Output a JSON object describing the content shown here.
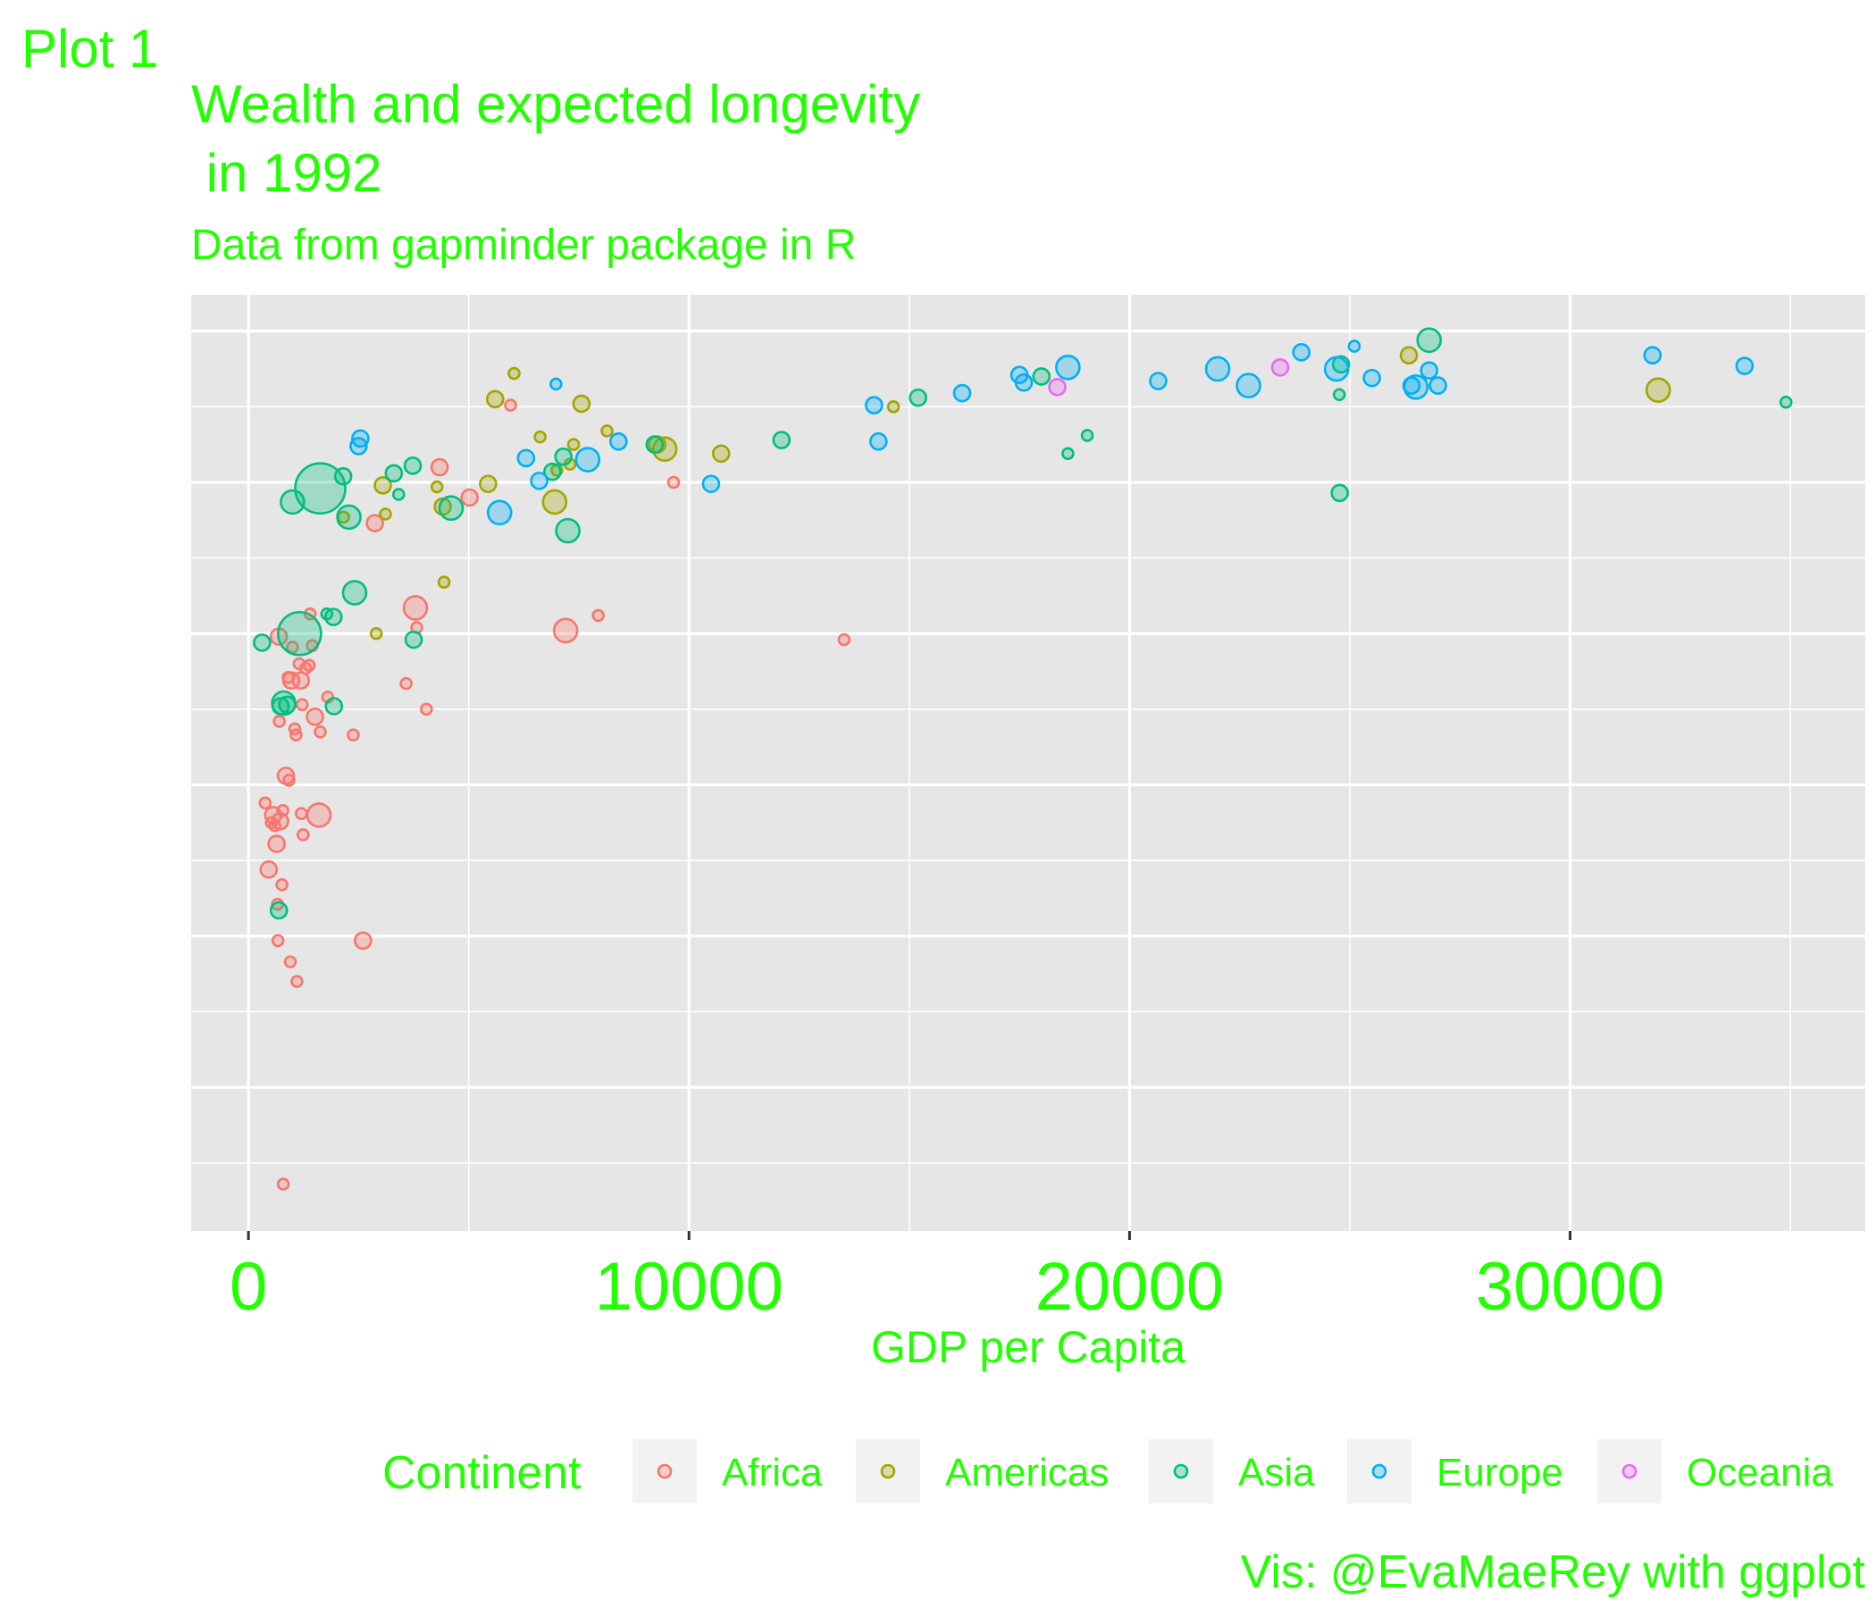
{
  "chart_data": {
    "type": "scatter",
    "tag": "Plot 1",
    "title_lines": [
      "Wealth and expected longevity",
      " in 1992"
    ],
    "subtitle": "Data from gapminder package in R",
    "xlabel": "GDP per Capita",
    "ylabel": "",
    "caption": "Vis: @EvaMaeRey with ggplot",
    "xlim": [
      -1300,
      36700
    ],
    "ylim": [
      20.5,
      82.4
    ],
    "x_ticks": [
      0,
      10000,
      20000,
      30000
    ],
    "x_tick_labels": [
      "0",
      "10000",
      "20000",
      "30000"
    ],
    "x_minor_ticks": [
      5000,
      15000,
      25000,
      35000
    ],
    "y_major_ticks": [
      30,
      40,
      50,
      60,
      70,
      80
    ],
    "y_minor_ticks": [
      25,
      35,
      45,
      55,
      65,
      75
    ],
    "y_tick_labels_shown": false,
    "grid": true,
    "legend": {
      "position": "bottom",
      "title": "Continent",
      "entries": [
        {
          "name": "Africa",
          "color": "#F8766D"
        },
        {
          "name": "Americas",
          "color": "#A3A500"
        },
        {
          "name": "Asia",
          "color": "#00BF7D"
        },
        {
          "name": "Europe",
          "color": "#00B0F6"
        },
        {
          "name": "Oceania",
          "color": "#E76BF3"
        }
      ]
    },
    "colors": {
      "text": "#22ff00",
      "panel": "#e6e6e6",
      "grid": "#ffffff"
    },
    "series": [
      {
        "name": "Africa",
        "color": "#F8766D",
        "points": [
          [
            380,
            48.8,
            1
          ],
          [
            460,
            44.4,
            2
          ],
          [
            520,
            47.5,
            1
          ],
          [
            560,
            48.0,
            2
          ],
          [
            600,
            47.3,
            1
          ],
          [
            640,
            46.1,
            2
          ],
          [
            660,
            42.1,
            1
          ],
          [
            670,
            39.7,
            1
          ],
          [
            690,
            59.8,
            2
          ],
          [
            700,
            54.2,
            1
          ],
          [
            720,
            47.6,
            2
          ],
          [
            760,
            43.4,
            1
          ],
          [
            780,
            48.3,
            1
          ],
          [
            790,
            23.6,
            1
          ],
          [
            850,
            50.6,
            2
          ],
          [
            900,
            57.1,
            1
          ],
          [
            920,
            50.3,
            1
          ],
          [
            950,
            38.3,
            1
          ],
          [
            970,
            56.9,
            2
          ],
          [
            1000,
            59.1,
            1
          ],
          [
            1050,
            53.7,
            1
          ],
          [
            1080,
            53.3,
            1
          ],
          [
            1100,
            37.0,
            1
          ],
          [
            1150,
            58.0,
            1
          ],
          [
            1190,
            56.9,
            2
          ],
          [
            1200,
            48.1,
            1
          ],
          [
            1220,
            55.3,
            1
          ],
          [
            1240,
            46.7,
            1
          ],
          [
            1300,
            57.7,
            1
          ],
          [
            1380,
            57.9,
            1
          ],
          [
            1400,
            61.3,
            1
          ],
          [
            1450,
            59.2,
            1
          ],
          [
            1510,
            54.5,
            2
          ],
          [
            1600,
            48.0,
            3
          ],
          [
            1630,
            53.5,
            1
          ],
          [
            1800,
            55.8,
            1
          ],
          [
            2380,
            53.3,
            1
          ],
          [
            2600,
            39.7,
            2
          ],
          [
            2870,
            67.3,
            2
          ],
          [
            3580,
            56.7,
            1
          ],
          [
            3790,
            61.7,
            3
          ],
          [
            3820,
            60.4,
            1
          ],
          [
            4040,
            55.0,
            1
          ],
          [
            4340,
            71.0,
            2
          ],
          [
            5020,
            69.0,
            2
          ],
          [
            5950,
            75.1,
            1
          ],
          [
            7200,
            60.2,
            3
          ],
          [
            7940,
            61.2,
            1
          ],
          [
            9650,
            70.0,
            1
          ],
          [
            13520,
            59.6,
            1
          ]
        ]
      },
      {
        "name": "Americas",
        "color": "#A3A500",
        "points": [
          [
            2160,
            67.7,
            1
          ],
          [
            2900,
            60.0,
            1
          ],
          [
            3050,
            69.8,
            2
          ],
          [
            3110,
            67.9,
            1
          ],
          [
            4280,
            69.7,
            1
          ],
          [
            4410,
            68.4,
            2
          ],
          [
            4440,
            63.4,
            1
          ],
          [
            5440,
            69.9,
            2
          ],
          [
            5600,
            75.5,
            2
          ],
          [
            6030,
            77.2,
            1
          ],
          [
            6620,
            73.0,
            1
          ],
          [
            6950,
            68.7,
            3
          ],
          [
            7000,
            70.8,
            1
          ],
          [
            7300,
            71.2,
            1
          ],
          [
            7380,
            72.5,
            1
          ],
          [
            7560,
            75.2,
            2
          ],
          [
            8140,
            73.4,
            1
          ],
          [
            9280,
            72.5,
            2
          ],
          [
            9450,
            72.2,
            3
          ],
          [
            10730,
            71.9,
            2
          ],
          [
            14640,
            75.0,
            1
          ],
          [
            26340,
            78.4,
            2
          ],
          [
            32000,
            76.1,
            3
          ]
        ]
      },
      {
        "name": "Asia",
        "color": "#00BF7D",
        "points": [
          [
            310,
            59.4,
            2
          ],
          [
            690,
            41.7,
            2
          ],
          [
            730,
            55.2,
            2
          ],
          [
            800,
            55.4,
            3
          ],
          [
            880,
            55.3,
            2
          ],
          [
            1000,
            68.7,
            3
          ],
          [
            1160,
            60.0,
            4
          ],
          [
            1630,
            69.6,
            4
          ],
          [
            1780,
            61.3,
            1
          ],
          [
            1930,
            61.1,
            2
          ],
          [
            1940,
            55.2,
            2
          ],
          [
            2150,
            70.4,
            2
          ],
          [
            2280,
            67.7,
            3
          ],
          [
            2410,
            62.7,
            3
          ],
          [
            3300,
            70.6,
            2
          ],
          [
            3410,
            69.2,
            1
          ],
          [
            3730,
            71.1,
            2
          ],
          [
            3750,
            59.6,
            2
          ],
          [
            4600,
            68.3,
            3
          ],
          [
            6900,
            70.7,
            2
          ],
          [
            7150,
            71.7,
            2
          ],
          [
            7250,
            66.8,
            3
          ],
          [
            9220,
            72.5,
            2
          ],
          [
            12100,
            72.8,
            2
          ],
          [
            15200,
            75.6,
            2
          ],
          [
            18000,
            77.0,
            2
          ],
          [
            18600,
            71.9,
            1
          ],
          [
            19040,
            73.1,
            1
          ],
          [
            24770,
            69.3,
            2
          ],
          [
            24760,
            75.8,
            1
          ],
          [
            24800,
            77.8,
            2
          ],
          [
            26800,
            79.4,
            3
          ],
          [
            34900,
            75.3,
            1
          ]
        ]
      },
      {
        "name": "Europe",
        "color": "#00B0F6",
        "points": [
          [
            2500,
            72.4,
            2
          ],
          [
            2540,
            72.9,
            2
          ],
          [
            5700,
            68.0,
            3
          ],
          [
            6300,
            71.6,
            2
          ],
          [
            6600,
            70.1,
            2
          ],
          [
            6980,
            76.5,
            1
          ],
          [
            7700,
            71.5,
            3
          ],
          [
            8400,
            72.7,
            2
          ],
          [
            10500,
            69.9,
            2
          ],
          [
            14200,
            75.1,
            2
          ],
          [
            14300,
            72.7,
            2
          ],
          [
            16200,
            75.9,
            2
          ],
          [
            17500,
            77.1,
            2
          ],
          [
            17600,
            76.6,
            2
          ],
          [
            18600,
            77.6,
            3
          ],
          [
            20650,
            76.7,
            2
          ],
          [
            22000,
            77.5,
            3
          ],
          [
            22700,
            76.4,
            3
          ],
          [
            23900,
            78.6,
            2
          ],
          [
            24700,
            77.5,
            3
          ],
          [
            25100,
            79.0,
            1
          ],
          [
            25500,
            76.9,
            2
          ],
          [
            26400,
            76.4,
            2
          ],
          [
            26500,
            76.3,
            3
          ],
          [
            26800,
            77.4,
            2
          ],
          [
            27000,
            76.4,
            2
          ],
          [
            31870,
            78.4,
            2
          ],
          [
            33960,
            77.7,
            2
          ]
        ]
      },
      {
        "name": "Oceania",
        "color": "#E76BF3",
        "points": [
          [
            18360,
            76.3,
            2
          ],
          [
            23420,
            77.6,
            2
          ]
        ]
      }
    ]
  }
}
